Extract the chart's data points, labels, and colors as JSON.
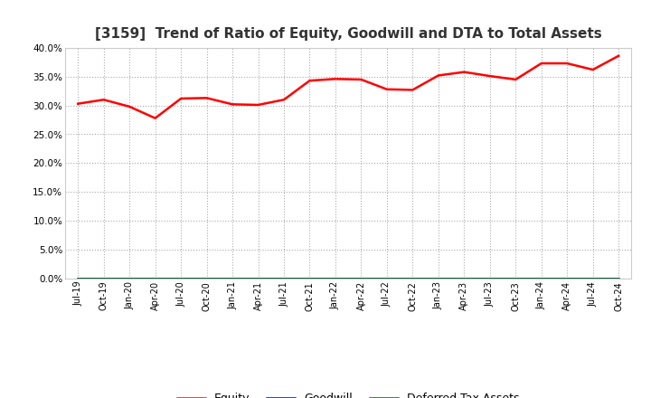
{
  "title": "[3159]  Trend of Ratio of Equity, Goodwill and DTA to Total Assets",
  "title_fontsize": 11,
  "xlabels": [
    "Jul-19",
    "Oct-19",
    "Jan-20",
    "Apr-20",
    "Jul-20",
    "Oct-20",
    "Jan-21",
    "Apr-21",
    "Jul-21",
    "Oct-21",
    "Jan-22",
    "Apr-22",
    "Jul-22",
    "Oct-22",
    "Jan-23",
    "Apr-23",
    "Jul-23",
    "Oct-23",
    "Jan-24",
    "Apr-24",
    "Jul-24",
    "Oct-24"
  ],
  "equity": [
    30.3,
    31.0,
    29.8,
    27.8,
    31.2,
    31.3,
    30.2,
    30.1,
    31.0,
    34.3,
    34.6,
    34.5,
    32.8,
    32.7,
    35.2,
    35.8,
    35.1,
    34.5,
    37.3,
    37.3,
    36.2,
    38.6
  ],
  "goodwill": [
    0,
    0,
    0,
    0,
    0,
    0,
    0,
    0,
    0,
    0,
    0,
    0,
    0,
    0,
    0,
    0,
    0,
    0,
    0,
    0,
    0,
    0
  ],
  "dta": [
    0,
    0,
    0,
    0,
    0,
    0,
    0,
    0,
    0,
    0,
    0,
    0,
    0,
    0,
    0,
    0,
    0,
    0,
    0,
    0,
    0,
    0
  ],
  "equity_color": "#ff0000",
  "goodwill_color": "#0000cd",
  "dta_color": "#006400",
  "ylim": [
    0,
    40
  ],
  "yticks": [
    0,
    5,
    10,
    15,
    20,
    25,
    30,
    35,
    40
  ],
  "background_color": "#ffffff",
  "plot_bg_color": "#f5f5f5",
  "grid_color": "#aaaaaa",
  "legend_labels": [
    "Equity",
    "Goodwill",
    "Deferred Tax Assets"
  ]
}
